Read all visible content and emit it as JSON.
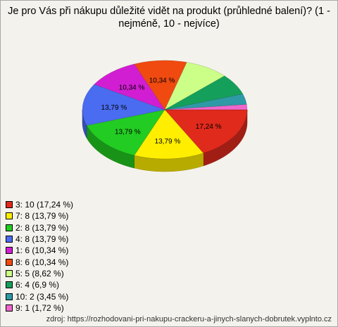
{
  "chart_data": {
    "type": "pie",
    "title": "Je pro Vás při nákupu důležité vidět na produkt (průhledné balení)? (1 - nejméně, 10 - nejvíce)",
    "categories": [
      "3: 10 (17,24 %)",
      "7: 8 (13,79 %)",
      "2: 8 (13,79 %)",
      "4: 8 (13,79 %)",
      "1: 6 (10,34 %)",
      "8: 6 (10,34 %)",
      "5: 5 (8,62 %)",
      "6: 4 (6,9 %)",
      "10: 2 (3,45 %)",
      "9: 1 (1,72 %)"
    ],
    "values": [
      17.24,
      13.79,
      13.79,
      13.79,
      10.34,
      10.34,
      8.62,
      6.9,
      3.45,
      1.72
    ],
    "value_labels": [
      "17,24 %",
      "13,79 %",
      "13,79 %",
      "13,79 %",
      "10,34 %",
      "10,34 %",
      null,
      null,
      null,
      null
    ],
    "colors": [
      "#e02a1c",
      "#ffee00",
      "#22cc22",
      "#4a6cf0",
      "#d21ed2",
      "#f04a10",
      "#ccff88",
      "#14a05a",
      "#2e9aa6",
      "#ee66cc"
    ],
    "source": "zdroj: https://rozhodovani-pri-nakupu-crackeru-a-jinych-slanych-dobrutek.vyplnto.cz"
  }
}
